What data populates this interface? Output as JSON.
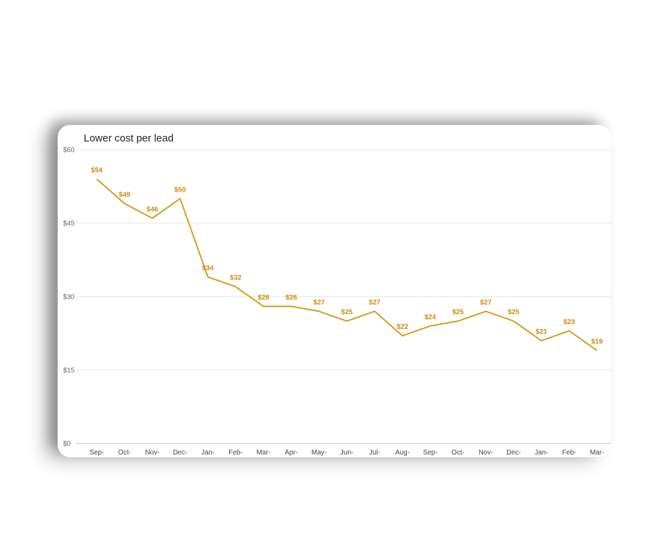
{
  "chart_data": {
    "type": "line",
    "title": "Lower cost per lead",
    "xlabel": "",
    "ylabel": "",
    "categories": [
      "Sep-",
      "Oct-",
      "Nov-",
      "Dec-",
      "Jan-",
      "Feb-",
      "Mar-",
      "Apr-",
      "May-",
      "Jun-",
      "Jul-",
      "Aug-",
      "Sep-",
      "Oct-",
      "Nov-",
      "Dec-",
      "Jan-",
      "Feb-",
      "Mar-"
    ],
    "series": [
      {
        "values": [
          54,
          49,
          46,
          50,
          34,
          32,
          28,
          28,
          27,
          25,
          27,
          22,
          24,
          25,
          27,
          25,
          21,
          23,
          19
        ],
        "labels": [
          "$54",
          "$49",
          "$46",
          "$50",
          "$34",
          "$32",
          "$28",
          "$28",
          "$27",
          "$25",
          "$27",
          "$22",
          "$24",
          "$25",
          "$27",
          "$25",
          "$21",
          "$23",
          "$19"
        ]
      }
    ],
    "ylim": [
      0,
      60
    ],
    "yticks": [
      0,
      15,
      30,
      45,
      60
    ],
    "ytick_labels": [
      "$0",
      "$15",
      "$30",
      "$45",
      "$60"
    ],
    "grid": true,
    "legend": "none",
    "line_color": "#d59a1c",
    "label_color": "#c98a12"
  }
}
